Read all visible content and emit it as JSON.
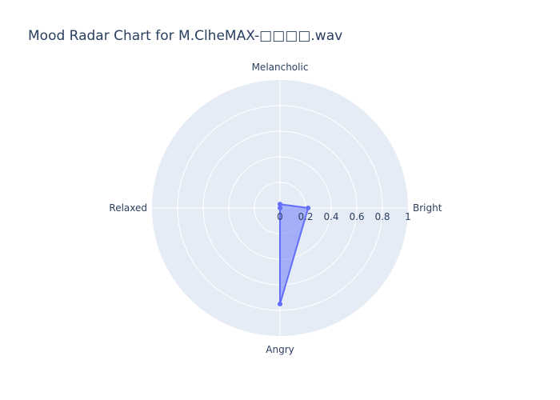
{
  "chart_data": {
    "type": "radar",
    "title": "Mood Radar Chart for M.ClheMAX-□□□□.wav",
    "categories": [
      "Bright",
      "Melancholic",
      "Relaxed",
      "Angry"
    ],
    "series": [
      {
        "values": [
          0.22,
          0.03,
          0.0,
          0.75
        ]
      }
    ],
    "radial_range": [
      0,
      1
    ],
    "radial_ticks": [
      "0",
      "0.2",
      "0.4",
      "0.6",
      "0.8",
      "1"
    ],
    "grid": true,
    "background_color": "#e5ecf6",
    "series_color": "#636efa",
    "fill_color": "#636efa"
  }
}
